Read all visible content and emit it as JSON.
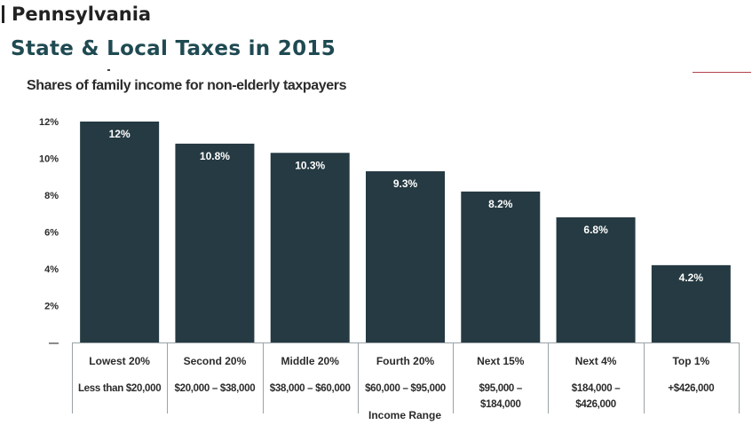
{
  "page": {
    "state": "Pennsylvania",
    "title": "State & Local Taxes in 2015"
  },
  "chart_data": {
    "type": "bar",
    "subtitle": "Shares of family income for non-elderly taxpayers",
    "xlabel": "Income Range",
    "categories": [
      "Lowest 20%",
      "Second 20%",
      "Middle 20%",
      "Fourth 20%",
      "Next 15%",
      "Next 4%",
      "Top 1%"
    ],
    "ranges": [
      [
        "Less than $20,000"
      ],
      [
        "$20,000 – $38,000"
      ],
      [
        "$38,000 – $60,000"
      ],
      [
        "$60,000 – $95,000"
      ],
      [
        "$95,000 –",
        "$184,000"
      ],
      [
        "$184,000 –",
        "$426,000"
      ],
      [
        "+$426,000"
      ]
    ],
    "values": [
      12,
      10.8,
      10.3,
      9.3,
      8.2,
      6.8,
      4.2
    ],
    "value_labels": [
      "12%",
      "10.8%",
      "10.3%",
      "9.3%",
      "8.2%",
      "6.8%",
      "4.2%"
    ],
    "ylim": [
      0,
      12
    ],
    "yticks": [
      2,
      4,
      6,
      8,
      10,
      12
    ],
    "ytick_labels": [
      "2%",
      "4%",
      "6%",
      "8%",
      "10%",
      "12%"
    ],
    "zero_tick_label": "—",
    "grid": false,
    "legend": "none",
    "colors": {
      "bar": "#253a42",
      "bar_label": "#ffffff",
      "title": "#1f4a52",
      "text": "#2b2b2b",
      "axis": "#9aa3a6",
      "accent": "#b0424a"
    }
  }
}
